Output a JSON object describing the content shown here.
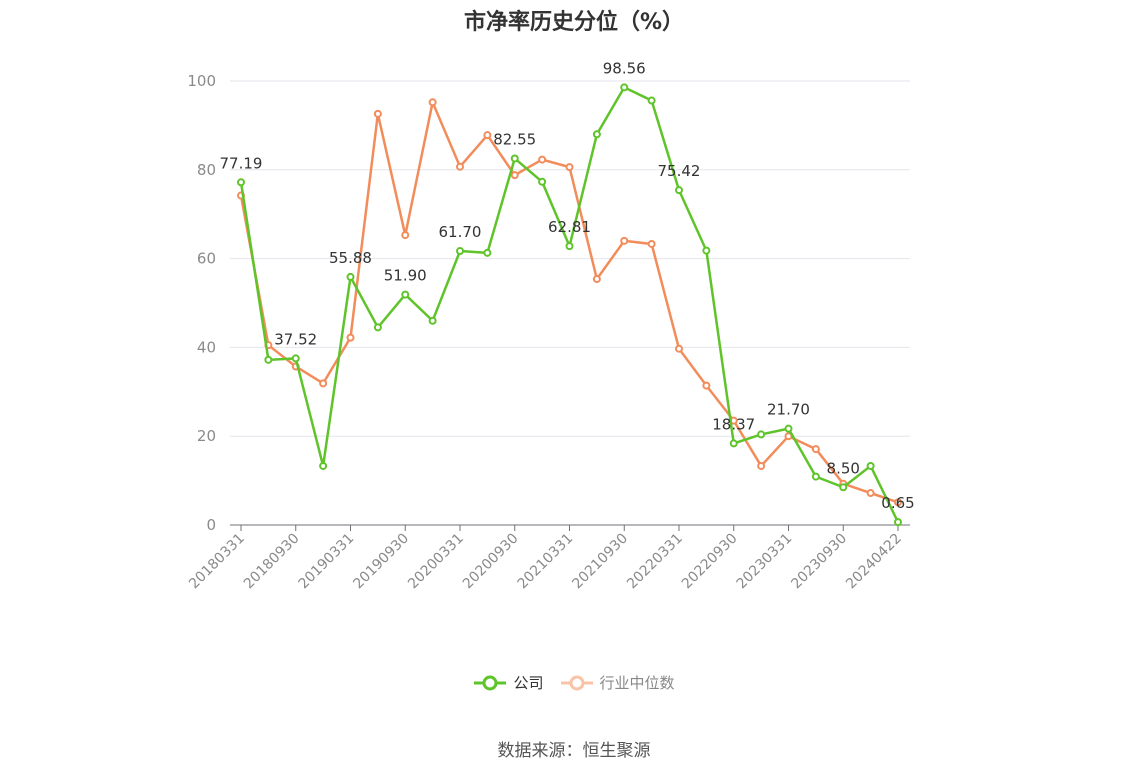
{
  "chart_data": {
    "type": "line",
    "title": "市净率历史分位（%）",
    "ylim": [
      0,
      100
    ],
    "y_ticks": [
      0,
      20,
      40,
      60,
      80,
      100
    ],
    "x_tick_labels": [
      "20180331",
      "20180930",
      "20190331",
      "20190930",
      "20200331",
      "20200930",
      "20210331",
      "20210930",
      "20220331",
      "20220930",
      "20230331",
      "20230930",
      "20240422"
    ],
    "grid": true,
    "legend_position": "bottom-center",
    "series": [
      {
        "name": "公司",
        "color": "#5ec42a",
        "values": [
          77.19,
          37.2,
          37.52,
          13.3,
          55.88,
          44.5,
          51.9,
          46.0,
          61.7,
          61.3,
          82.55,
          77.3,
          62.81,
          88.0,
          98.56,
          95.6,
          75.42,
          61.8,
          18.37,
          20.4,
          21.7,
          10.9,
          8.5,
          13.3,
          0.65
        ],
        "labeled_points": [
          {
            "index": 0,
            "text": "77.19"
          },
          {
            "index": 2,
            "text": "37.52"
          },
          {
            "index": 4,
            "text": "55.88"
          },
          {
            "index": 6,
            "text": "51.90"
          },
          {
            "index": 8,
            "text": "61.70"
          },
          {
            "index": 10,
            "text": "82.55"
          },
          {
            "index": 12,
            "text": "62.81"
          },
          {
            "index": 14,
            "text": "98.56"
          },
          {
            "index": 16,
            "text": "75.42"
          },
          {
            "index": 18,
            "text": "18.37"
          },
          {
            "index": 20,
            "text": "21.70"
          },
          {
            "index": 22,
            "text": "8.50"
          },
          {
            "index": 24,
            "text": "0.65"
          }
        ]
      },
      {
        "name": "行业中位数",
        "color": "#f28c5a",
        "values": [
          74.2,
          40.5,
          35.7,
          31.9,
          42.2,
          92.6,
          65.3,
          95.2,
          80.7,
          87.8,
          78.8,
          82.3,
          80.6,
          55.4,
          64.0,
          63.3,
          39.7,
          31.4,
          23.5,
          13.3,
          20.0,
          17.1,
          9.3,
          7.2,
          5.1
        ]
      }
    ]
  },
  "source": "数据来源：恒生聚源"
}
